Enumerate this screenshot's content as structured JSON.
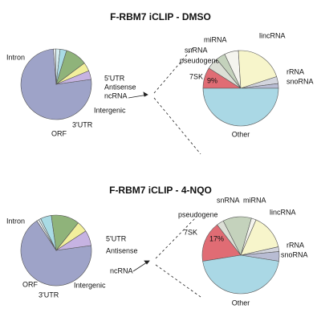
{
  "chart_data": [
    {
      "type": "pie",
      "title": "F-RBM7 iCLIP - DMSO",
      "categories": [
        "Intron",
        "5'UTR",
        "Antisense",
        "ncRNA",
        "Intergenic",
        "3'UTR",
        "ORF"
      ],
      "values": [
        76,
        1,
        2,
        3,
        10,
        4,
        4
      ],
      "colors": [
        "#9ea3c8",
        "#eef3f4",
        "#d6eef2",
        "#a9dbe5",
        "#8fb37a",
        "#f2ef9c",
        "#c6b3e2"
      ]
    },
    {
      "type": "pie",
      "categories": [
        "7SK",
        "pseudogene",
        "snRNA",
        "miRNA",
        "lincRNA",
        "rRNA",
        "snoRNA",
        "Other"
      ],
      "values": [
        9,
        5,
        4,
        6,
        21,
        3,
        2,
        50
      ],
      "value_labels": [
        "9%",
        null,
        null,
        null,
        null,
        null,
        null,
        null
      ],
      "colors": [
        "#e06c74",
        "#dcdfd6",
        "#c4d2bc",
        "#f4f4ee",
        "#f7f5cb",
        "#d3d5de",
        "#b8bcd3",
        "#aad8e5"
      ]
    },
    {
      "type": "pie",
      "title": "F-RBM7 iCLIP - 4-NQO",
      "categories": [
        "Intron",
        "5'UTR",
        "Antisense",
        "ncRNA",
        "Intergenic",
        "3'UTR",
        "ORF"
      ],
      "values": [
        68,
        1,
        1,
        5,
        13,
        5,
        7
      ],
      "colors": [
        "#9ea3c8",
        "#eef3f4",
        "#d6eef2",
        "#a9dbe5",
        "#8fb37a",
        "#f2ef9c",
        "#c6b3e2"
      ]
    },
    {
      "type": "pie",
      "categories": [
        "7SK",
        "pseudogene",
        "snRNA",
        "miRNA",
        "lincRNA",
        "rRNA",
        "snoRNA",
        "Other"
      ],
      "values": [
        17,
        3,
        12,
        2,
        15,
        2,
        4,
        45
      ],
      "value_labels": [
        "17%",
        null,
        null,
        null,
        null,
        null,
        null,
        null
      ],
      "colors": [
        "#e06c74",
        "#dcdfd6",
        "#c4d2bc",
        "#f4f4ee",
        "#f7f5cb",
        "#d3d5de",
        "#b8bcd3",
        "#aad8e5"
      ]
    }
  ]
}
